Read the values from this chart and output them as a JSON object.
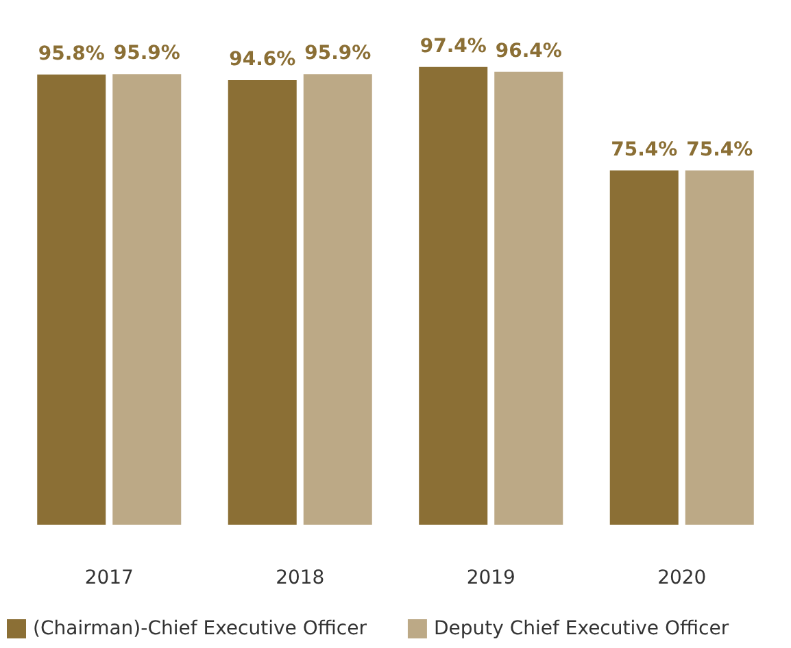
{
  "chart_data": {
    "type": "bar",
    "categories": [
      "2017",
      "2018",
      "2019",
      "2020"
    ],
    "series": [
      {
        "name": "(Chairman)-Chief Executive Officer",
        "color": "#8b6f35",
        "values": [
          95.8,
          94.6,
          97.4,
          75.4
        ],
        "value_labels": [
          "95.8%",
          "94.6%",
          "97.4%",
          "75.4%"
        ]
      },
      {
        "name": "Deputy Chief Executive Officer",
        "color": "#bca986",
        "values": [
          95.9,
          95.9,
          96.4,
          75.4
        ],
        "value_labels": [
          "95.9%",
          "95.9%",
          "96.4%",
          "75.4%"
        ]
      }
    ],
    "tick_labels": "x",
    "grid": false,
    "legend": "bottom left"
  }
}
